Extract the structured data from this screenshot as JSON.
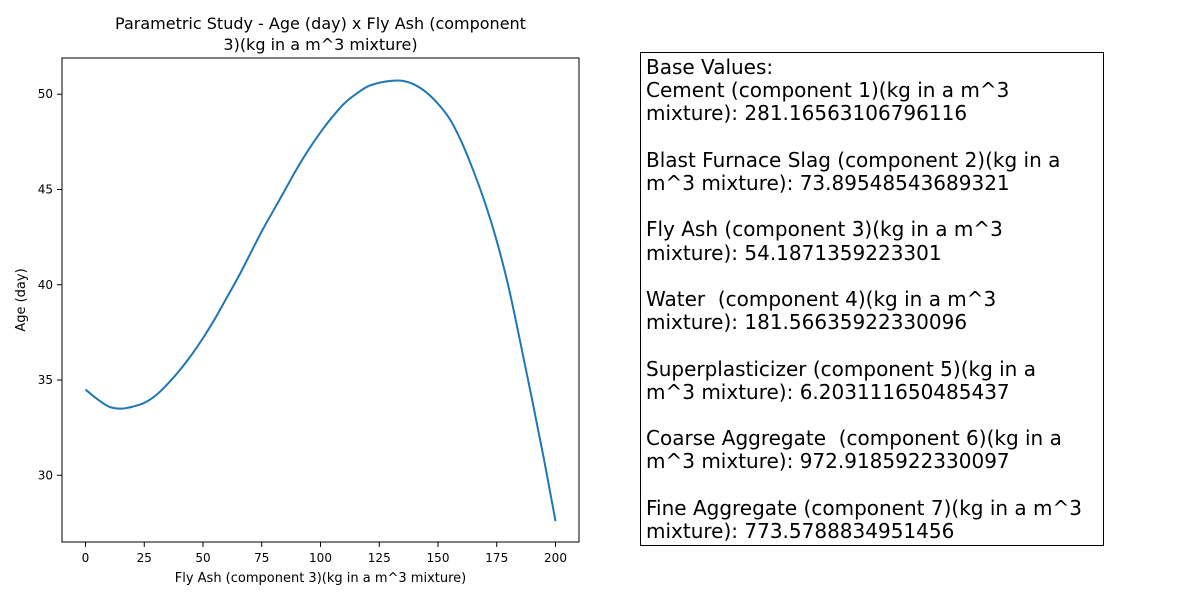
{
  "chart_data": {
    "type": "line",
    "title": "Parametric Study - Age (day) x Fly Ash (component\n3)(kg in a m^3 mixture)",
    "title_lines": [
      "Parametric Study - Age (day) x Fly Ash (component",
      "3)(kg in a m^3 mixture)"
    ],
    "xlabel": "Fly Ash (component 3)(kg in a m^3 mixture)",
    "ylabel": "Age (day)",
    "xlim": [
      -10,
      210
    ],
    "ylim": [
      26.5,
      51.9
    ],
    "xticks": [
      0,
      25,
      50,
      75,
      100,
      125,
      150,
      175,
      200
    ],
    "yticks": [
      30,
      35,
      40,
      45,
      50
    ],
    "grid": false,
    "line_color": "#1f77b4",
    "series": [
      {
        "x": [
          0,
          5,
          10,
          15,
          20,
          25,
          30,
          35,
          40,
          45,
          50,
          55,
          60,
          65,
          70,
          75,
          80,
          85,
          90,
          95,
          100,
          105,
          110,
          115,
          120,
          125,
          130,
          135,
          140,
          145,
          150,
          155,
          160,
          165,
          170,
          175,
          180,
          185,
          190,
          195,
          200
        ],
        "y": [
          34.5,
          34.0,
          33.6,
          33.5,
          33.6,
          33.8,
          34.2,
          34.8,
          35.5,
          36.3,
          37.2,
          38.2,
          39.3,
          40.4,
          41.6,
          42.8,
          43.9,
          45.0,
          46.1,
          47.1,
          48.0,
          48.8,
          49.5,
          50.0,
          50.4,
          50.6,
          50.7,
          50.7,
          50.5,
          50.1,
          49.5,
          48.7,
          47.5,
          46.0,
          44.3,
          42.3,
          39.9,
          37.0,
          34.0,
          30.9,
          27.6
        ]
      }
    ]
  },
  "info_box": {
    "title": "Base Values:",
    "entries": [
      {
        "line1": "Cement (component 1)(kg in a m^3",
        "line2": "mixture): 281.16563106796116"
      },
      {
        "line1": "Blast Furnace Slag (component 2)(kg in a",
        "line2": "m^3 mixture): 73.89548543689321"
      },
      {
        "line1": "Fly Ash (component 3)(kg in a m^3",
        "line2": "mixture): 54.1871359223301"
      },
      {
        "line1": "Water  (component 4)(kg in a m^3",
        "line2": "mixture): 181.56635922330096"
      },
      {
        "line1": "Superplasticizer (component 5)(kg in a",
        "line2": "m^3 mixture): 6.203111650485437"
      },
      {
        "line1": "Coarse Aggregate  (component 6)(kg in a",
        "line2": "m^3 mixture): 972.9185922330097"
      },
      {
        "line1": "Fine Aggregate (component 7)(kg in a m^3",
        "line2": "mixture): 773.5788834951456"
      }
    ]
  }
}
